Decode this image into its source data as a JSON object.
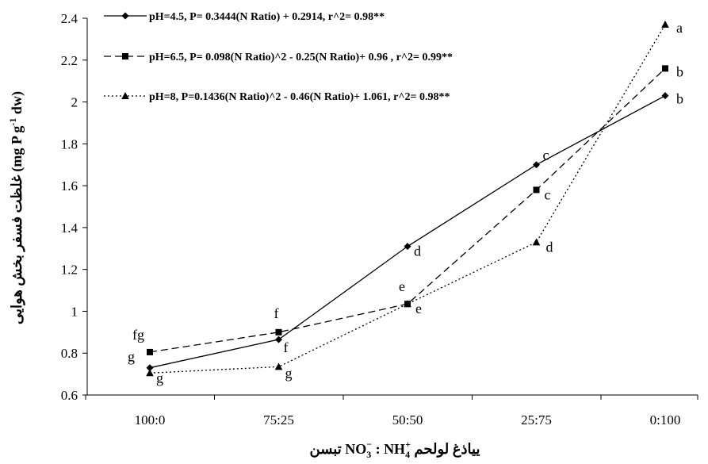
{
  "chart_data": {
    "type": "line",
    "categories": [
      "100:0",
      "75:25",
      "50:50",
      "25:75",
      "0:100"
    ],
    "ylim": [
      0.6,
      2.4
    ],
    "yticks": [
      "0.6",
      "0.8",
      "1",
      "1.2",
      "1.4",
      "1.6",
      "1.8",
      "2",
      "2.2",
      "2.4"
    ],
    "xlabel": "نسبت  NO3- : NH4+ محلول غذایی",
    "xlabel_parts": {
      "prefix": "نسبت",
      "ion1": "NO",
      "ion1_sub": "3",
      "ion1_sup": "−",
      "colon": " : ",
      "ion2": "NH",
      "ion2_sub": "4",
      "ion2_sup": "+",
      "suffix": " محلول غذایی"
    },
    "ylabel": "غلظت فسفر بخش هوایی (mg P g-1 dw)",
    "ylabel_parts": {
      "fa": "غلظت فسفر بخش هوایی",
      "pre": "(mg P g",
      "sup": "-1",
      "post": " dw)"
    },
    "legend_position": "top-left",
    "grid": false,
    "series": [
      {
        "name": "pH=4.5, P= 0.3444(N Ratio) + 0.2914, r^2= 0.98**",
        "values": [
          0.73,
          0.865,
          1.31,
          1.7,
          2.03
        ],
        "letters": [
          "g",
          "f",
          "d",
          "c",
          "b"
        ],
        "marker": "diamond",
        "dash": "solid"
      },
      {
        "name": "pH=6.5, P= 0.098(N Ratio)^2 - 0.25(N Ratio)+ 0.96 , r^2= 0.99**",
        "values": [
          0.805,
          0.9,
          1.035,
          1.58,
          2.16
        ],
        "letters": [
          "fg",
          "f",
          "e",
          "c",
          "b"
        ],
        "marker": "square",
        "dash": "dashed"
      },
      {
        "name": "pH=8, P=0.1436(N Ratio)^2 - 0.46(N Ratio)+ 1.061, r^2= 0.98**",
        "values": [
          0.705,
          0.735,
          1.035,
          1.33,
          2.37
        ],
        "letters": [
          "g",
          "g",
          "e",
          "d",
          "a"
        ],
        "marker": "triangle",
        "dash": "dotted"
      }
    ]
  }
}
